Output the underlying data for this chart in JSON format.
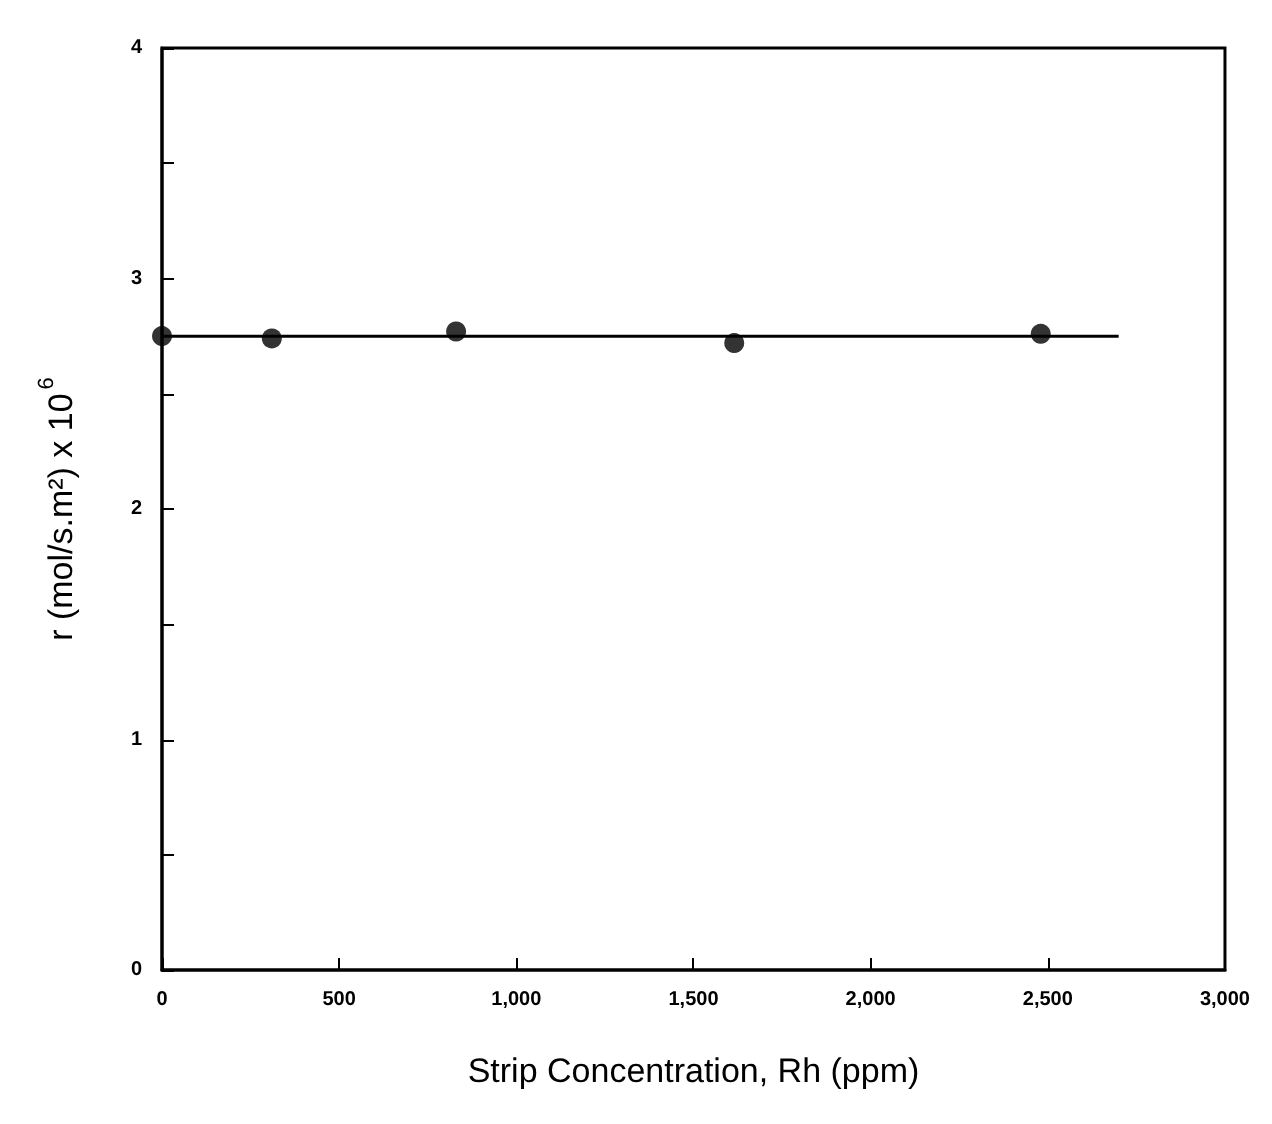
{
  "chart_data": {
    "type": "scatter",
    "xlabel": "Strip Concentration, Rh (ppm)",
    "ylabel": "r (mol/s.m²) x 10$^{6}$",
    "x": [
      0,
      310,
      830,
      1615,
      2480
    ],
    "series": [
      {
        "color": "#000000",
        "marker": "circle",
        "values": [
          2.75,
          2.74,
          2.77,
          2.72,
          2.76
        ]
      },
      {
        "type": "line",
        "color": "#000000",
        "marker": "none",
        "line_style": "solid",
        "x": [
          0,
          2700
        ],
        "values": [
          2.75,
          2.75
        ]
      }
    ],
    "xlim": [
      0,
      3000
    ],
    "xticks": [
      0,
      {
        "value": 500,
        "label": "500"
      },
      {
        "value": 1000,
        "label": "1,000"
      },
      {
        "value": 1500,
        "label": "1,500"
      },
      {
        "value": 2000,
        "label": "2,000"
      },
      {
        "value": 2500,
        "label": "2,500"
      },
      {
        "value": 3000,
        "label": "3,000"
      }
    ],
    "ylim": [
      0,
      4
    ],
    "yticks": [
      0,
      {
        "value": 0.5,
        "label": null
      },
      1,
      {
        "value": 1.5,
        "label": null
      },
      2,
      {
        "value": 2.5,
        "label": null
      },
      3,
      {
        "value": 3.5,
        "label": null
      },
      4
    ],
    "grid": false
  }
}
